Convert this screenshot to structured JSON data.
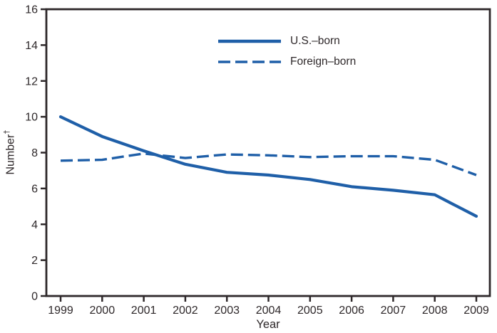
{
  "figure": {
    "xlabel": "Year",
    "ylabel_text": "Number",
    "ylabel_superscript": "†"
  },
  "colors": {
    "line_blue": "#1f5fa8",
    "axis_dark": "#2e282a"
  },
  "chart_data": {
    "type": "line",
    "x": [
      1999,
      2000,
      2001,
      2002,
      2003,
      2004,
      2005,
      2006,
      2007,
      2008,
      2009
    ],
    "series": [
      {
        "name": "U.S.–born",
        "style": "solid",
        "values": [
          10.0,
          8.9,
          8.1,
          7.35,
          6.9,
          6.75,
          6.5,
          6.1,
          5.9,
          5.65,
          4.45
        ]
      },
      {
        "name": "Foreign–born",
        "style": "dashed",
        "values": [
          7.55,
          7.6,
          7.95,
          7.7,
          7.9,
          7.85,
          7.75,
          7.8,
          7.8,
          7.6,
          6.75
        ]
      }
    ],
    "title": "",
    "xlabel": "Year",
    "ylabel": "Number†",
    "ylim": [
      0,
      16
    ],
    "yticks": [
      0,
      2,
      4,
      6,
      8,
      10,
      12,
      14,
      16
    ],
    "grid": false,
    "legend_position": "inside upper-center"
  }
}
